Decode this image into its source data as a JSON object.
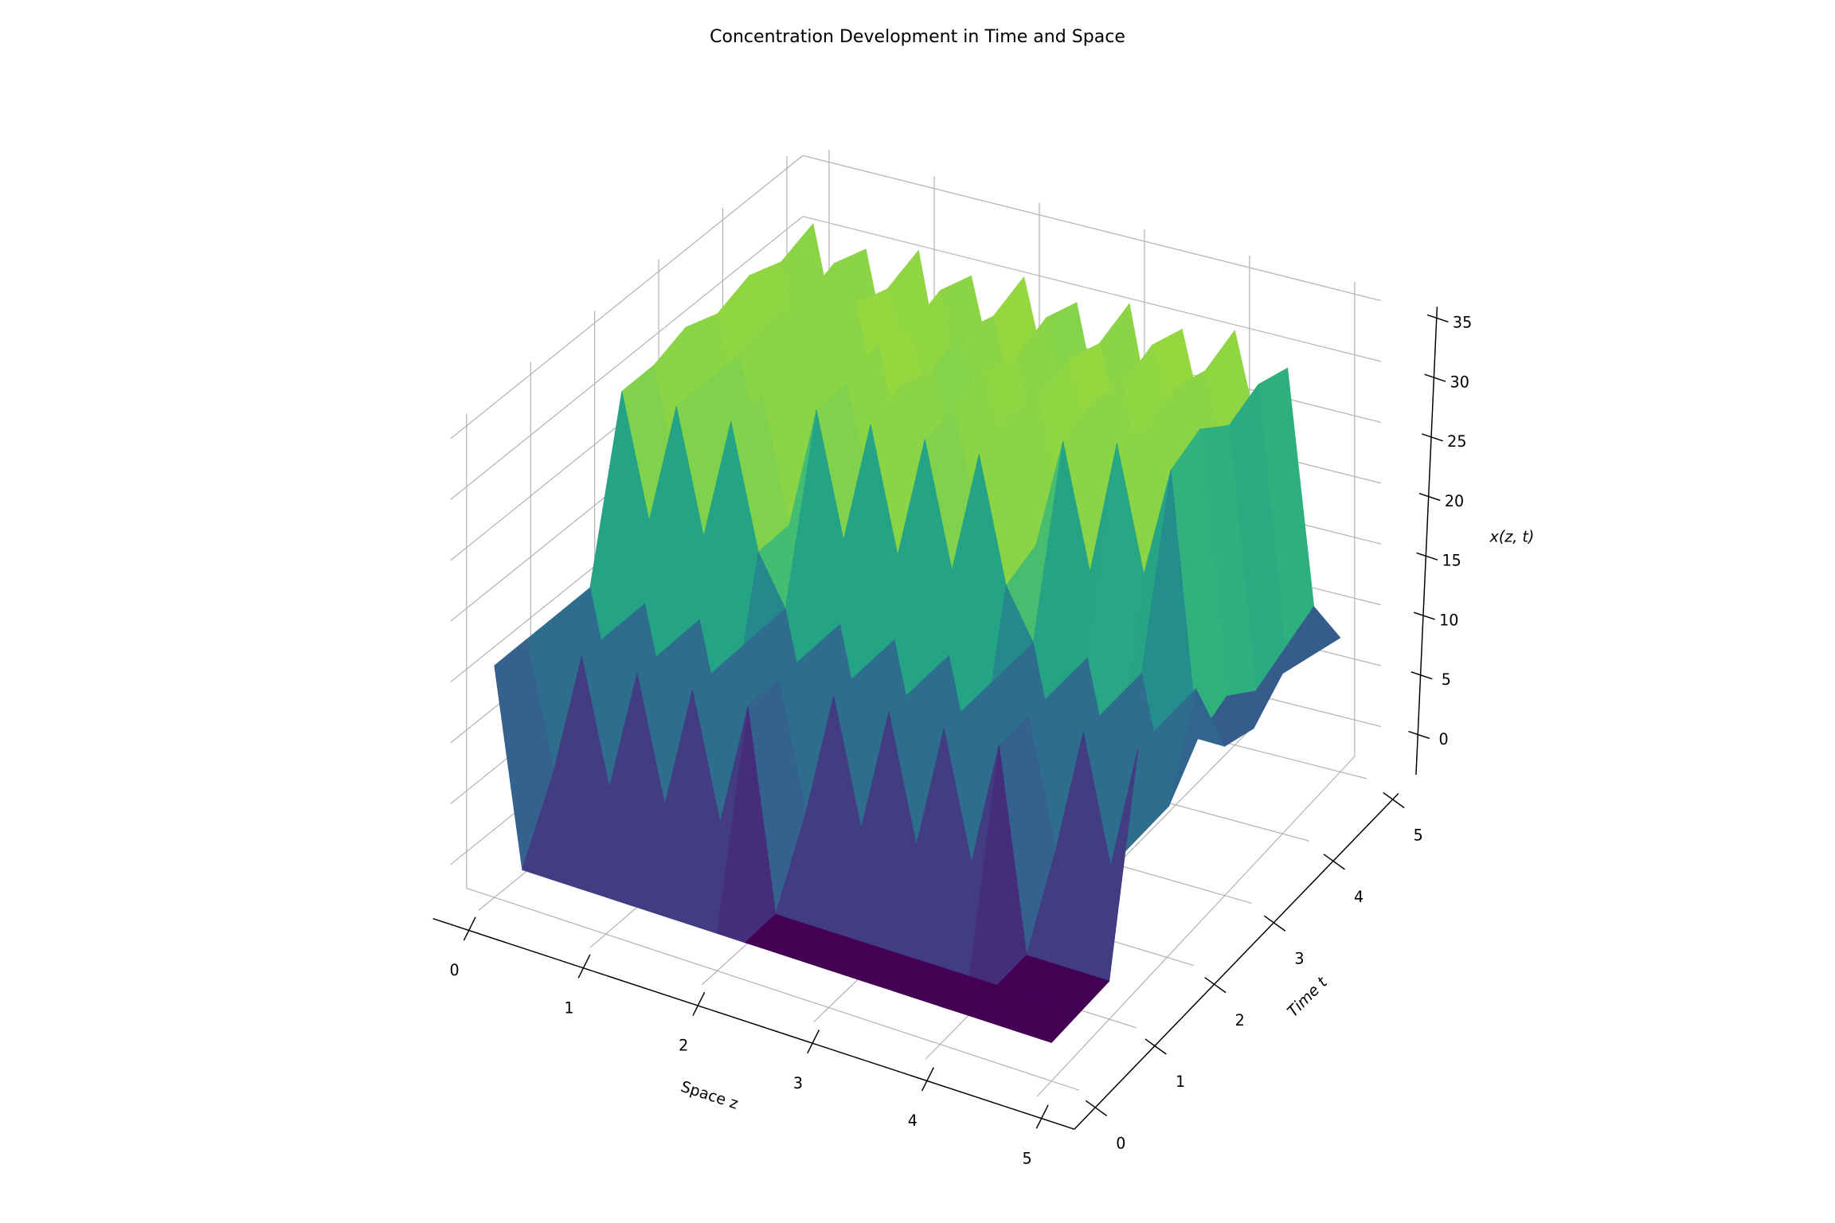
{
  "chart_data": {
    "type": "surface",
    "title": "Concentration Development in Time and Space",
    "xlabel": "Space z",
    "ylabel": "Time t",
    "zlabel": "x(z, t)",
    "colormap": "viridis",
    "zaxis": {
      "ticks": [
        "0",
        "1",
        "2",
        "3",
        "4",
        "5"
      ],
      "values": [
        0,
        1,
        2,
        3,
        4,
        5
      ],
      "lim": [
        -0.25,
        5.25
      ]
    },
    "taxis": {
      "ticks": [
        "0",
        "1",
        "2",
        "3",
        "4",
        "5"
      ],
      "values": [
        0,
        1,
        2,
        3,
        4,
        5
      ],
      "lim": [
        -0.25,
        5.25
      ]
    },
    "xaxis": {
      "ticks": [
        "0",
        "5",
        "10",
        "15",
        "20",
        "25",
        "30",
        "35"
      ],
      "values": [
        0,
        5,
        10,
        15,
        20,
        25,
        30,
        35
      ],
      "lim": [
        -3,
        36
      ]
    },
    "grid": true,
    "z": [
      0,
      0.25,
      0.5,
      0.75,
      1,
      1.25,
      1.5,
      1.75,
      2,
      2.25,
      2.5,
      2.75,
      3,
      3.25,
      3.5,
      3.75,
      4,
      4.25,
      4.5,
      4.75,
      5
    ],
    "t": [
      0,
      0.5,
      1,
      1.5,
      2,
      2.5,
      3,
      3.5,
      4,
      4.5,
      5
    ],
    "values": [
      [
        16,
        0,
        0,
        0,
        0,
        0,
        0,
        0,
        0,
        0,
        0,
        0,
        0,
        0,
        0,
        0,
        0,
        0,
        0,
        0,
        0
      ],
      [
        16,
        6,
        16,
        6,
        16,
        6,
        16,
        6,
        16,
        0,
        0,
        0,
        0,
        0,
        0,
        0,
        0,
        0,
        0,
        0,
        0
      ],
      [
        16,
        6,
        16,
        6,
        16,
        6,
        16,
        6,
        16,
        6,
        16,
        6,
        16,
        6,
        16,
        6,
        16,
        0,
        0,
        0,
        0
      ],
      [
        16,
        6,
        16,
        6,
        16,
        6,
        16,
        6,
        16,
        6,
        16,
        6,
        16,
        6,
        16,
        6,
        16,
        6,
        16,
        6,
        16
      ],
      [
        30,
        20,
        30,
        20,
        30,
        20,
        16,
        6,
        16,
        6,
        16,
        6,
        16,
        6,
        16,
        6,
        16,
        6,
        16,
        6,
        16
      ],
      [
        30,
        20,
        30,
        20,
        30,
        20,
        30,
        20,
        30,
        20,
        30,
        20,
        30,
        20,
        16,
        6,
        16,
        6,
        16,
        6,
        16
      ],
      [
        31,
        21,
        30,
        20,
        31,
        21,
        30,
        20,
        31,
        21,
        30,
        20,
        31,
        21,
        30,
        20,
        31,
        21,
        30,
        9,
        9
      ],
      [
        30,
        20,
        31,
        21,
        30,
        20,
        31,
        21,
        30,
        20,
        31,
        21,
        30,
        20,
        31,
        21,
        30,
        20,
        31,
        10,
        8
      ],
      [
        31,
        22,
        30,
        20,
        31,
        21,
        30,
        22,
        31,
        20,
        30,
        21,
        31,
        22,
        30,
        20,
        31,
        21,
        29,
        8,
        10
      ],
      [
        30,
        20,
        31,
        21,
        30,
        22,
        31,
        20,
        30,
        21,
        31,
        20,
        30,
        21,
        31,
        22,
        30,
        20,
        30,
        9,
        9
      ],
      [
        31,
        21,
        30,
        20,
        31,
        20,
        30,
        21,
        31,
        22,
        30,
        20,
        31,
        20,
        30,
        21,
        31,
        22,
        29,
        10,
        8
      ]
    ],
    "color_range": [
      0,
      31
    ]
  }
}
